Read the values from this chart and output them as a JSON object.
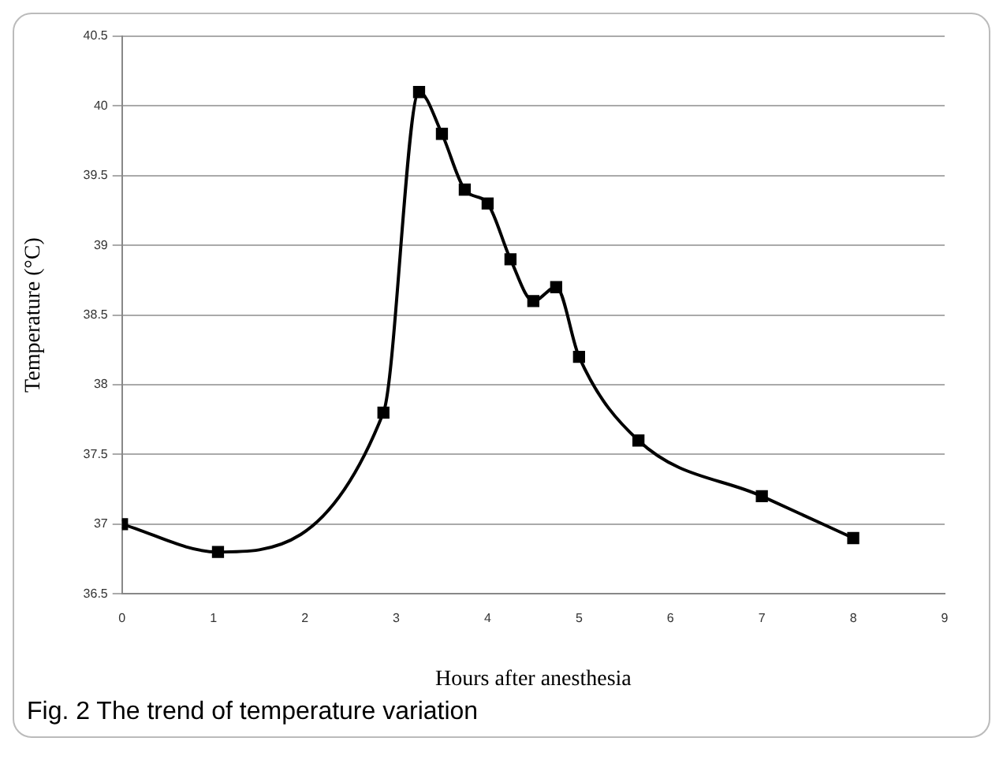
{
  "chart_data": {
    "type": "line",
    "title": "Fig. 2 The trend of temperature variation",
    "xlabel": "Hours after anesthesia",
    "ylabel": "Temperature (°C)",
    "x": [
      0,
      1.05,
      2.86,
      3.25,
      3.5,
      3.75,
      4,
      4.25,
      4.5,
      4.75,
      5,
      5.65,
      7,
      8
    ],
    "series": [
      {
        "color": "#000000",
        "values": [
          37,
          36.8,
          37.8,
          40.1,
          39.8,
          39.4,
          39.3,
          38.9,
          38.6,
          38.7,
          38.2,
          37.6,
          37.2,
          36.9
        ]
      }
    ],
    "xlim": [
      0,
      9
    ],
    "xticks": [
      0,
      1,
      2,
      3,
      4,
      5,
      6,
      7,
      8,
      9
    ],
    "ylim": [
      36.5,
      40.5
    ],
    "yticks": [
      36.5,
      37,
      37.5,
      38,
      38.5,
      39,
      39.5,
      40,
      40.5
    ],
    "grid": "y",
    "legend": false,
    "marker": "square",
    "line_style": "solid"
  }
}
